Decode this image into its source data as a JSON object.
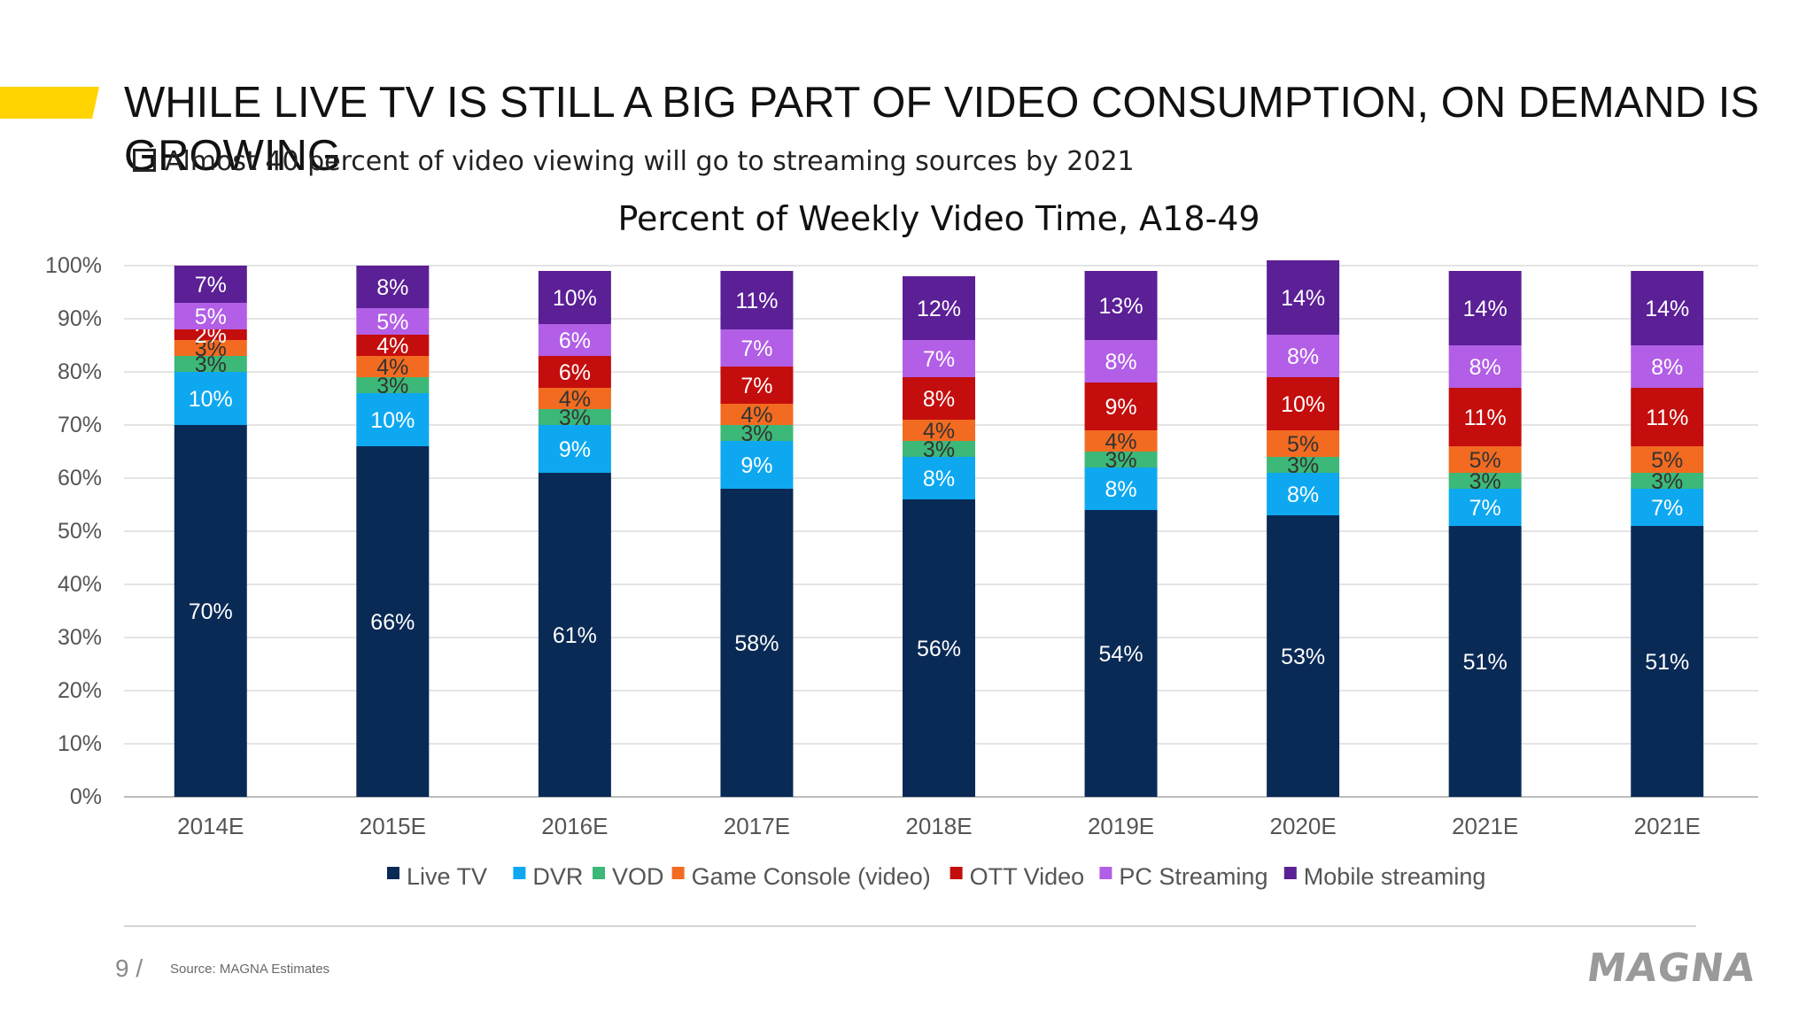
{
  "slide": {
    "title": "WHILE LIVE TV IS STILL A BIG PART OF VIDEO CONSUMPTION, ON DEMAND IS GROWING",
    "bullet": "Almost 40 percent of video viewing will go to streaming sources by 2021",
    "page_number": "9 /",
    "source": "Source: MAGNA Estimates",
    "logo": "MAGNA",
    "accent_color": "#ffd400"
  },
  "chart_data": {
    "type": "bar",
    "stacked": true,
    "title": "Percent of Weekly Video Time, A18-49",
    "xlabel": "",
    "ylabel": "",
    "ylim": [
      0,
      100
    ],
    "yticks": [
      "0%",
      "10%",
      "20%",
      "30%",
      "40%",
      "50%",
      "60%",
      "70%",
      "80%",
      "90%",
      "100%"
    ],
    "grid": true,
    "legend_position": "bottom",
    "categories": [
      "2014E",
      "2015E",
      "2016E",
      "2017E",
      "2018E",
      "2019E",
      "2020E",
      "2021E",
      "2021E"
    ],
    "series": [
      {
        "name": "Live TV",
        "color": "#0a2a56",
        "values": [
          70,
          66,
          61,
          58,
          56,
          54,
          53,
          51,
          51
        ]
      },
      {
        "name": "DVR",
        "color": "#0ea8f0",
        "values": [
          10,
          10,
          9,
          9,
          8,
          8,
          8,
          7,
          7
        ]
      },
      {
        "name": "VOD",
        "color": "#3cb878",
        "values": [
          3,
          3,
          3,
          3,
          3,
          3,
          3,
          3,
          3
        ]
      },
      {
        "name": "Game Console (video)",
        "color": "#f26b21",
        "values": [
          3,
          4,
          4,
          4,
          4,
          4,
          5,
          5,
          5
        ]
      },
      {
        "name": "OTT Video",
        "color": "#c40d0d",
        "values": [
          2,
          4,
          6,
          7,
          8,
          9,
          10,
          11,
          11
        ]
      },
      {
        "name": "PC Streaming",
        "color": "#b25ee6",
        "values": [
          5,
          5,
          6,
          7,
          7,
          8,
          8,
          8,
          8
        ]
      },
      {
        "name": "Mobile streaming",
        "color": "#5b1f96",
        "values": [
          7,
          8,
          10,
          11,
          12,
          13,
          14,
          14,
          14
        ]
      }
    ]
  }
}
